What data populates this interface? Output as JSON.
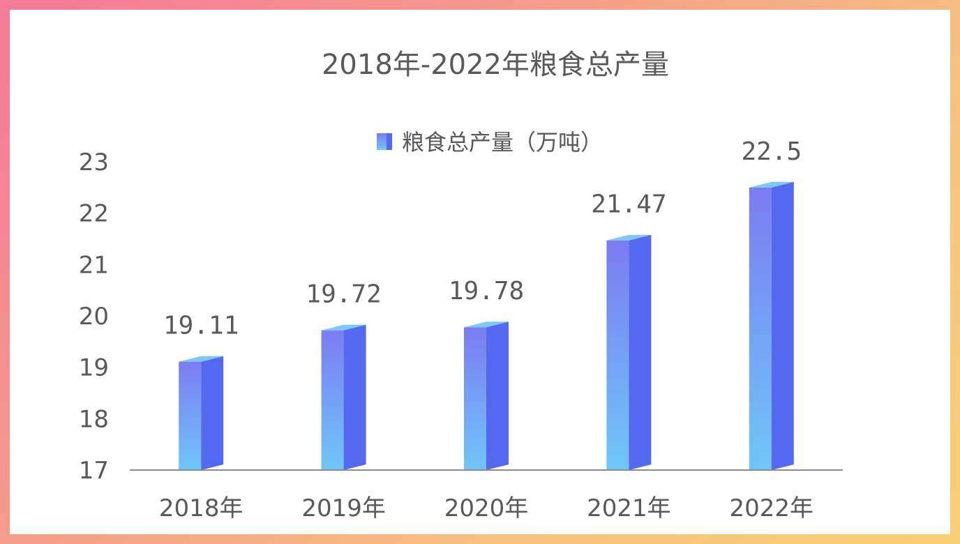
{
  "chart_data": {
    "type": "bar",
    "title": "2018年-2022年粮食总产量",
    "categories": [
      "2018年",
      "2019年",
      "2020年",
      "2021年",
      "2022年"
    ],
    "series": [
      {
        "name": "粮食总产量（万吨）",
        "values": [
          19.11,
          19.72,
          19.78,
          21.47,
          22.5
        ],
        "labels": [
          "19.11",
          "19.72",
          "19.78",
          "21.47",
          "22.5"
        ]
      }
    ],
    "ylim": [
      17,
      23
    ],
    "yticks": [
      "17",
      "18",
      "19",
      "20",
      "21",
      "22",
      "23"
    ],
    "grid": false,
    "legend_position": "top-center",
    "colors": {
      "bar_front_top": "#7b7cf1",
      "bar_front_bottom": "#6fc6f9",
      "bar_side": "#5569f0",
      "bar_top": "#7cc8f8",
      "axis": "#8c8c8c",
      "text": "#595959"
    }
  }
}
